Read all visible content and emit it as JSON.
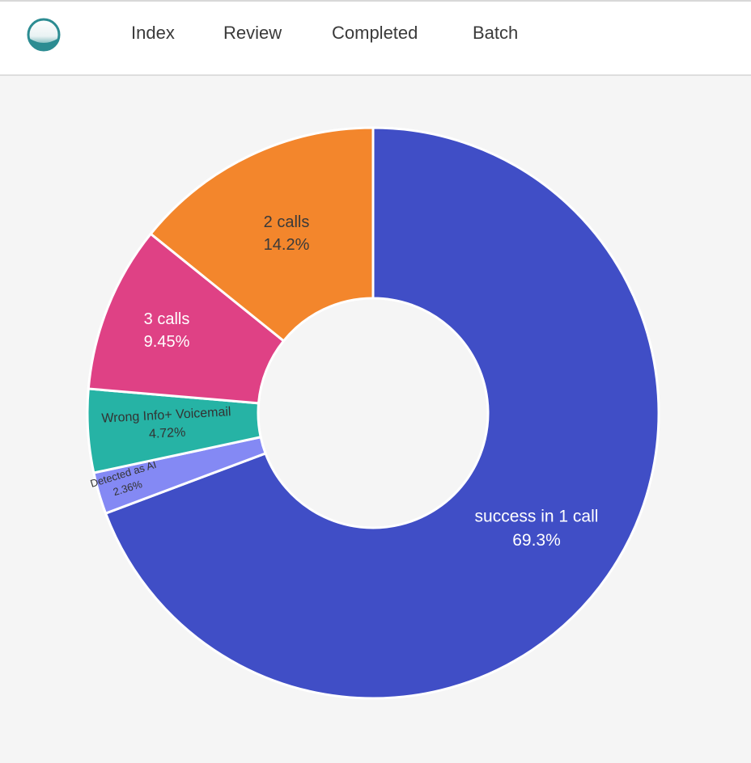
{
  "nav": {
    "logo": "app-logo",
    "items": [
      {
        "label": "Index"
      },
      {
        "label": "Review"
      },
      {
        "label": "Completed"
      },
      {
        "label": "Batch"
      }
    ]
  },
  "chart_data": {
    "type": "pie",
    "donut": true,
    "slices": [
      {
        "label": "success in 1 call",
        "value": 69.3,
        "pct": "69.3%",
        "color": "#404ec6",
        "text_color": "#ffffff"
      },
      {
        "label": "Detected as AI",
        "value": 2.36,
        "pct": "2.36%",
        "color": "#8489f4",
        "text_color": "#333333"
      },
      {
        "label": "Wrong Info+ Voicemail",
        "value": 4.72,
        "pct": "4.72%",
        "color": "#26b3a5",
        "text_color": "#333333"
      },
      {
        "label": "3 calls",
        "value": 9.45,
        "pct": "9.45%",
        "color": "#df4185",
        "text_color": "#ffffff"
      },
      {
        "label": "2 calls",
        "value": 14.2,
        "pct": "14.2%",
        "color": "#f3862c",
        "text_color": "#3a3a3a"
      }
    ]
  }
}
